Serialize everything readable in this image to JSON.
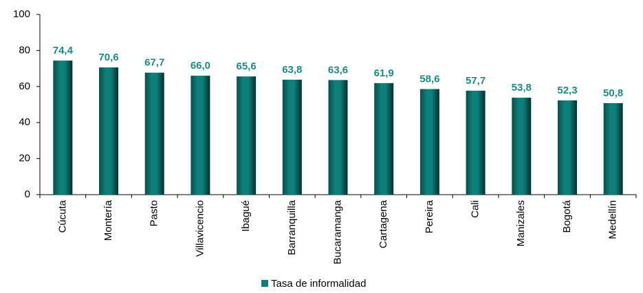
{
  "chart_data": {
    "type": "bar",
    "categories": [
      "Cúcuta",
      "Montería",
      "Pasto",
      "Villavicencio",
      "Ibagué",
      "Barranquilla",
      "Bucaramanga",
      "Cartagena",
      "Pereira",
      "Cali",
      "Manizales",
      "Bogotá",
      "Medellín"
    ],
    "series": [
      {
        "name": "Tasa de informalidad",
        "color": "#0e7f78",
        "values": [
          74.4,
          70.6,
          67.7,
          66.0,
          65.6,
          63.8,
          63.6,
          61.9,
          58.6,
          57.7,
          53.8,
          52.3,
          50.8
        ],
        "value_labels": [
          "74,4",
          "70,6",
          "67,7",
          "66,0",
          "65,6",
          "63,8",
          "63,6",
          "61,9",
          "58,6",
          "57,7",
          "53,8",
          "52,3",
          "50,8"
        ]
      }
    ],
    "ylim": [
      0,
      100
    ],
    "yticks": [
      0,
      20,
      40,
      60,
      80,
      100
    ],
    "legend": "bottom"
  }
}
